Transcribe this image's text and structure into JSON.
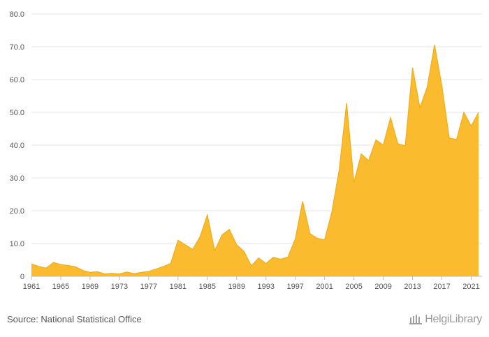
{
  "colors": {
    "area": "#fbbb2e",
    "line": "#f0ad15",
    "grid": "#e6e6e6",
    "axis": "#bbbbbb"
  },
  "footer": {
    "source": "Source: National Statistical Office",
    "logo_text": "HelgiLibrary"
  },
  "chart_data": {
    "type": "area",
    "title": "",
    "xlabel": "",
    "ylabel": "",
    "ylim": [
      0,
      80
    ],
    "grid": true,
    "yticks": [
      "0",
      "10.0",
      "20.0",
      "30.0",
      "40.0",
      "50.0",
      "60.0",
      "70.0",
      "80.0"
    ],
    "xticks": [
      "1961",
      "1965",
      "1969",
      "1973",
      "1977",
      "1981",
      "1985",
      "1989",
      "1993",
      "1997",
      "2001",
      "2005",
      "2009",
      "2013",
      "2017",
      "2021"
    ],
    "x": [
      1961,
      1962,
      1963,
      1964,
      1965,
      1966,
      1967,
      1968,
      1969,
      1970,
      1971,
      1972,
      1973,
      1974,
      1975,
      1976,
      1977,
      1978,
      1979,
      1980,
      1981,
      1982,
      1983,
      1984,
      1985,
      1986,
      1987,
      1988,
      1989,
      1990,
      1991,
      1992,
      1993,
      1994,
      1995,
      1996,
      1997,
      1998,
      1999,
      2000,
      2001,
      2002,
      2003,
      2004,
      2005,
      2006,
      2007,
      2008,
      2009,
      2010,
      2011,
      2012,
      2013,
      2014,
      2015,
      2016,
      2017,
      2018,
      2019,
      2020,
      2021,
      2022
    ],
    "values": [
      3.8,
      3.0,
      2.5,
      4.2,
      3.6,
      3.3,
      2.9,
      1.8,
      1.2,
      1.4,
      0.7,
      0.9,
      0.7,
      1.3,
      0.8,
      1.2,
      1.5,
      2.2,
      3.0,
      3.9,
      11.0,
      9.6,
      8.2,
      12.0,
      18.7,
      7.8,
      12.6,
      14.3,
      9.6,
      7.6,
      3.2,
      5.6,
      3.9,
      5.8,
      5.2,
      5.9,
      11.4,
      22.9,
      13.0,
      11.6,
      11.1,
      19.7,
      32.6,
      52.8,
      28.6,
      37.3,
      35.3,
      41.6,
      40.0,
      48.4,
      40.4,
      39.8,
      63.6,
      51.4,
      57.7,
      70.6,
      58.0,
      42.2,
      41.7,
      50.0,
      45.8,
      50.0
    ]
  }
}
